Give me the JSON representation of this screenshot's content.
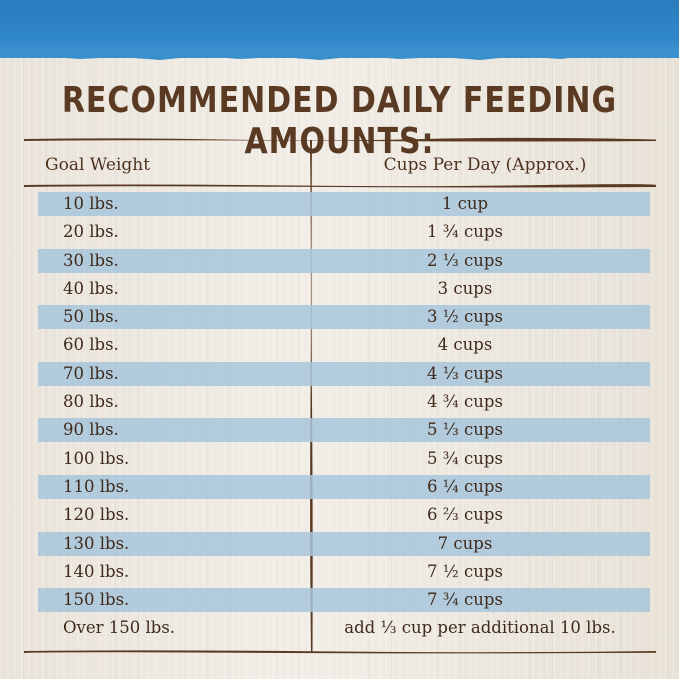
{
  "title": "RECOMMENDED DAILY FEEDING AMOUNTS:",
  "colors": {
    "band": "#2c7fc0",
    "stripe": "#a7c6dc",
    "text": "#3f2a1c",
    "rule": "#5a3a22"
  },
  "table": {
    "headers": {
      "weight": "Goal Weight",
      "cups": "Cups Per Day (Approx.)"
    },
    "rows": [
      {
        "weight": "10 lbs.",
        "cups": "1 cup"
      },
      {
        "weight": "20 lbs.",
        "cups": "1 ¾ cups"
      },
      {
        "weight": "30 lbs.",
        "cups": "2 ⅓ cups"
      },
      {
        "weight": "40 lbs.",
        "cups": "3 cups"
      },
      {
        "weight": "50 lbs.",
        "cups": "3 ½ cups"
      },
      {
        "weight": "60 lbs.",
        "cups": "4 cups"
      },
      {
        "weight": "70 lbs.",
        "cups": "4 ⅓ cups"
      },
      {
        "weight": "80 lbs.",
        "cups": "4 ¾ cups"
      },
      {
        "weight": "90 lbs.",
        "cups": "5 ⅓ cups"
      },
      {
        "weight": "100 lbs.",
        "cups": "5 ¾ cups"
      },
      {
        "weight": "110 lbs.",
        "cups": "6 ¼ cups"
      },
      {
        "weight": "120 lbs.",
        "cups": "6 ⅔ cups"
      },
      {
        "weight": "130 lbs.",
        "cups": "7 cups"
      },
      {
        "weight": "140 lbs.",
        "cups": "7 ½ cups"
      },
      {
        "weight": "150 lbs.",
        "cups": "7 ¾ cups"
      },
      {
        "weight": "Over 150 lbs.",
        "cups": "add ⅓ cup per additional 10 lbs."
      }
    ]
  }
}
